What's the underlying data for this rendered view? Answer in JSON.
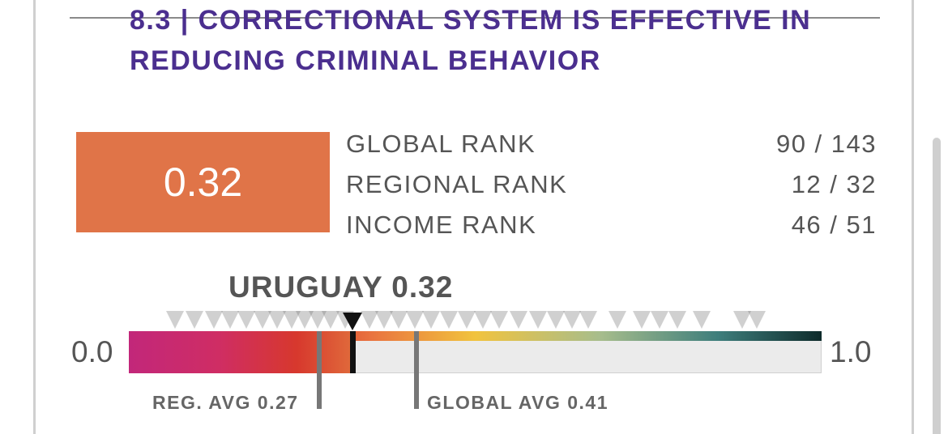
{
  "title": "8.3 | CORRECTIONAL SYSTEM IS EFFECTIVE IN REDUCING CRIMINAL BEHAVIOR",
  "score": "0.32",
  "ranks": [
    {
      "label": "GLOBAL RANK",
      "value": "90 / 143"
    },
    {
      "label": "REGIONAL RANK",
      "value": "12 / 32"
    },
    {
      "label": "INCOME RANK",
      "value": "46 / 51"
    }
  ],
  "country_label": "URUGUAY 0.32",
  "scale": {
    "min_label": "0.0",
    "max_label": "1.0",
    "current_value": 0.32
  },
  "averages": {
    "regional_label": "REG. AVG 0.27",
    "regional_value": 0.27,
    "global_label": "GLOBAL AVG 0.41",
    "global_value": 0.41
  },
  "colors": {
    "title": "#4b2f8f",
    "score_box": "#e07448",
    "text": "#555555"
  }
}
